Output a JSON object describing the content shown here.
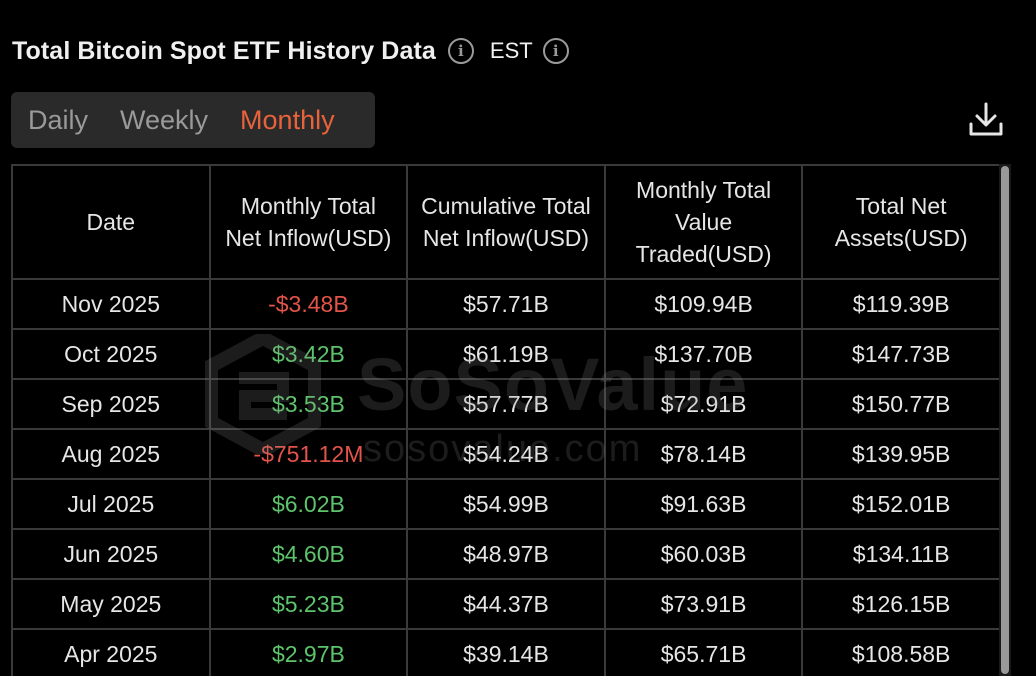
{
  "header": {
    "title": "Total Bitcoin Spot ETF History Data",
    "timezone": "EST",
    "info_icon": "info-icon"
  },
  "tabs": [
    {
      "label": "Daily",
      "active": false
    },
    {
      "label": "Weekly",
      "active": false
    },
    {
      "label": "Monthly",
      "active": true
    }
  ],
  "toolbar": {
    "download_icon": "download-icon"
  },
  "table": {
    "headers": [
      "Date",
      "Monthly Total Net Inflow(USD)",
      "Cumulative Total Net Inflow(USD)",
      "Monthly Total Value Traded(USD)",
      "Total Net Assets(USD)"
    ],
    "rows": [
      {
        "date": "Nov 2025",
        "net_inflow": "-$3.48B",
        "net_inflow_sign": "neg",
        "cumulative": "$57.71B",
        "traded": "$109.94B",
        "net_assets": "$119.39B"
      },
      {
        "date": "Oct 2025",
        "net_inflow": "$3.42B",
        "net_inflow_sign": "pos",
        "cumulative": "$61.19B",
        "traded": "$137.70B",
        "net_assets": "$147.73B"
      },
      {
        "date": "Sep 2025",
        "net_inflow": "$3.53B",
        "net_inflow_sign": "pos",
        "cumulative": "$57.77B",
        "traded": "$72.91B",
        "net_assets": "$150.77B"
      },
      {
        "date": "Aug 2025",
        "net_inflow": "-$751.12M",
        "net_inflow_sign": "neg",
        "cumulative": "$54.24B",
        "traded": "$78.14B",
        "net_assets": "$139.95B"
      },
      {
        "date": "Jul 2025",
        "net_inflow": "$6.02B",
        "net_inflow_sign": "pos",
        "cumulative": "$54.99B",
        "traded": "$91.63B",
        "net_assets": "$152.01B"
      },
      {
        "date": "Jun 2025",
        "net_inflow": "$4.60B",
        "net_inflow_sign": "pos",
        "cumulative": "$48.97B",
        "traded": "$60.03B",
        "net_assets": "$134.11B"
      },
      {
        "date": "May 2025",
        "net_inflow": "$5.23B",
        "net_inflow_sign": "pos",
        "cumulative": "$44.37B",
        "traded": "$73.91B",
        "net_assets": "$126.15B"
      },
      {
        "date": "Apr 2025",
        "net_inflow": "$2.97B",
        "net_inflow_sign": "pos",
        "cumulative": "$39.14B",
        "traded": "$65.71B",
        "net_assets": "$108.58B"
      }
    ]
  },
  "watermark": {
    "brand": "SoSoValue",
    "url": "sosovalue.com"
  },
  "colors": {
    "accent": "#e8623c",
    "positive": "#5dc46c",
    "negative": "#e2544a",
    "background": "#000000",
    "tab_bar": "#2a2a2a",
    "grid": "#3a3a3a"
  }
}
